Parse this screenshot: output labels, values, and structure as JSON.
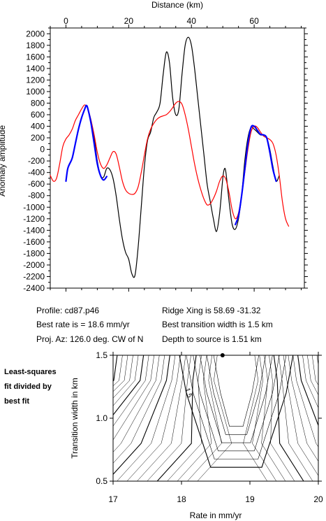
{
  "chart_data": [
    {
      "type": "line",
      "title": "",
      "xlabel": "Distance (km)",
      "ylabel": "Anomaly amplitude",
      "xlim": [
        -5,
        76
      ],
      "ylim": [
        -2400,
        2100
      ],
      "x_ticks": [
        "0",
        "20",
        "40",
        "60"
      ],
      "x_tick_values": [
        0,
        20,
        40,
        60
      ],
      "y_ticks": [
        "2000",
        "1800",
        "1600",
        "1400",
        "1200",
        "1000",
        "800",
        "600",
        "400",
        "200",
        "0",
        "-200",
        "-400",
        "-600",
        "-800",
        "-1000",
        "-1200",
        "-1400",
        "-1600",
        "-1800",
        "-2000",
        "-2200",
        "-2400"
      ],
      "series": [
        {
          "color": "#000000",
          "points": [
            [
              7,
              700
            ],
            [
              8,
              500
            ],
            [
              9,
              200
            ],
            [
              10,
              -200
            ],
            [
              11,
              -450
            ],
            [
              12,
              -480
            ],
            [
              13,
              -330
            ],
            [
              14,
              -350
            ],
            [
              15,
              -500
            ],
            [
              16,
              -800
            ],
            [
              17,
              -1200
            ],
            [
              18,
              -1550
            ],
            [
              19,
              -1780
            ],
            [
              20,
              -1900
            ],
            [
              21,
              -2150
            ],
            [
              22,
              -2180
            ],
            [
              23,
              -1700
            ],
            [
              24,
              -1000
            ],
            [
              25,
              -300
            ],
            [
              26,
              150
            ],
            [
              27,
              300
            ],
            [
              28,
              550
            ],
            [
              29,
              650
            ],
            [
              30,
              800
            ],
            [
              31,
              1300
            ],
            [
              32,
              1680
            ],
            [
              33,
              1500
            ],
            [
              34,
              900
            ],
            [
              35,
              600
            ],
            [
              36,
              700
            ],
            [
              37,
              1300
            ],
            [
              38,
              1800
            ],
            [
              39,
              1940
            ],
            [
              40,
              1800
            ],
            [
              41,
              1400
            ],
            [
              42,
              900
            ],
            [
              43,
              400
            ],
            [
              44,
              -100
            ],
            [
              45,
              -600
            ],
            [
              46,
              -900
            ],
            [
              47,
              -1200
            ],
            [
              48,
              -1420
            ],
            [
              49,
              -1100
            ],
            [
              50,
              -500
            ],
            [
              50.5,
              -340
            ],
            [
              51,
              -400
            ],
            [
              52,
              -900
            ],
            [
              53,
              -1300
            ],
            [
              54,
              -1380
            ],
            [
              55,
              -1200
            ],
            [
              56,
              -800
            ],
            [
              57,
              -200
            ],
            [
              58,
              200
            ],
            [
              59,
              380
            ],
            [
              60,
              350
            ],
            [
              61,
              300
            ],
            [
              62,
              250
            ],
            [
              63,
              250
            ],
            [
              64,
              200
            ],
            [
              65,
              0
            ],
            [
              66,
              -300
            ],
            [
              67,
              -550
            ],
            [
              68,
              -450
            ]
          ]
        },
        {
          "color": "#ff0000",
          "points": [
            [
              -5,
              -450
            ],
            [
              -4,
              -550
            ],
            [
              -3,
              -500
            ],
            [
              -2,
              -250
            ],
            [
              -1,
              50
            ],
            [
              0,
              180
            ],
            [
              1,
              250
            ],
            [
              2,
              350
            ],
            [
              3,
              500
            ],
            [
              4,
              600
            ],
            [
              5,
              700
            ],
            [
              6,
              770
            ],
            [
              7,
              700
            ],
            [
              8,
              500
            ],
            [
              9,
              250
            ],
            [
              10,
              -50
            ],
            [
              11,
              -250
            ],
            [
              12,
              -330
            ],
            [
              13,
              -270
            ],
            [
              14,
              -150
            ],
            [
              15,
              -40
            ],
            [
              16,
              -80
            ],
            [
              17,
              -300
            ],
            [
              18,
              -550
            ],
            [
              19,
              -700
            ],
            [
              20,
              -760
            ],
            [
              21,
              -780
            ],
            [
              22,
              -760
            ],
            [
              23,
              -650
            ],
            [
              24,
              -400
            ],
            [
              25,
              -100
            ],
            [
              26,
              180
            ],
            [
              27,
              350
            ],
            [
              28,
              450
            ],
            [
              29,
              520
            ],
            [
              30,
              560
            ],
            [
              31,
              580
            ],
            [
              32,
              600
            ],
            [
              33,
              650
            ],
            [
              34,
              720
            ],
            [
              35,
              800
            ],
            [
              36,
              830
            ],
            [
              37,
              780
            ],
            [
              38,
              600
            ],
            [
              39,
              350
            ],
            [
              40,
              50
            ],
            [
              41,
              -250
            ],
            [
              42,
              -500
            ],
            [
              43,
              -700
            ],
            [
              44,
              -860
            ],
            [
              45,
              -960
            ],
            [
              46,
              -940
            ],
            [
              47,
              -850
            ],
            [
              48,
              -720
            ],
            [
              49,
              -550
            ],
            [
              50,
              -460
            ],
            [
              51,
              -520
            ],
            [
              52,
              -750
            ],
            [
              53,
              -1050
            ],
            [
              54,
              -1200
            ],
            [
              55,
              -1100
            ],
            [
              56,
              -800
            ],
            [
              57,
              -400
            ],
            [
              58,
              0
            ],
            [
              59,
              300
            ],
            [
              60,
              400
            ],
            [
              61,
              380
            ],
            [
              62,
              300
            ],
            [
              63,
              230
            ],
            [
              64,
              200
            ],
            [
              65,
              170
            ],
            [
              66,
              100
            ],
            [
              67,
              -100
            ],
            [
              68,
              -450
            ],
            [
              69,
              -900
            ],
            [
              70,
              -1200
            ],
            [
              71,
              -1330
            ]
          ]
        },
        {
          "color": "#0000ff",
          "points": [
            [
              0,
              -550
            ],
            [
              0.5,
              -350
            ],
            [
              1,
              -270
            ],
            [
              2,
              -150
            ],
            [
              3,
              100
            ],
            [
              4,
              350
            ],
            [
              5,
              550
            ],
            [
              6,
              700
            ],
            [
              6.5,
              760
            ],
            [
              7,
              700
            ],
            [
              8,
              450
            ],
            [
              9,
              100
            ],
            [
              10,
              -250
            ],
            [
              11,
              -450
            ],
            [
              12,
              -530
            ],
            [
              13,
              -470
            ]
          ]
        },
        {
          "color": "#0000ff",
          "points": [
            [
              54,
              -1300
            ],
            [
              55,
              -1150
            ],
            [
              56,
              -800
            ],
            [
              57,
              -350
            ],
            [
              58,
              100
            ],
            [
              59,
              380
            ],
            [
              60,
              400
            ],
            [
              61,
              330
            ],
            [
              62,
              260
            ],
            [
              63,
              250
            ],
            [
              64,
              200
            ],
            [
              65,
              -50
            ],
            [
              66,
              -350
            ],
            [
              67,
              -550
            ]
          ]
        }
      ]
    },
    {
      "type": "contour",
      "xlabel": "Rate in mm/yr",
      "ylabel": "Transition width in km",
      "xlim": [
        17,
        20
      ],
      "ylim": [
        0.5,
        1.5
      ],
      "x_ticks": [
        "17",
        "18",
        "19",
        "20"
      ],
      "x_tick_values": [
        17,
        18,
        19,
        20
      ],
      "y_ticks": [
        "1.5",
        "1.0",
        "0.5"
      ],
      "y_tick_values": [
        1.5,
        1.0,
        0.5
      ],
      "best_fit_point": {
        "rate": 18.6,
        "width": 1.5
      },
      "contour_label": "1.5",
      "note": [
        "Least-squares",
        "fit divided by",
        "best fit"
      ]
    }
  ],
  "info": {
    "profile": "Profile: cd87.p46",
    "best_rate": "Best rate is = 18.6 mm/yr",
    "proj_az": "Proj. Az: 126.0 deg. CW of N",
    "ridge_xing": "Ridge Xing is 58.69 -31.32",
    "best_width": "Best transition width is 1.5 km",
    "depth": "Depth to source is    1.51 km"
  }
}
